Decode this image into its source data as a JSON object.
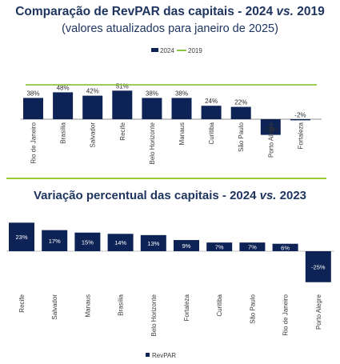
{
  "chart_data": [
    {
      "type": "bar",
      "title": "Comparação de RevPAR das capitais - 2024 vs. 2019",
      "subtitle": "(valores atualizados para janeiro de 2025)",
      "legend": [
        "2024",
        "2019"
      ],
      "legend_position": "top-center",
      "categories": [
        "Rio de Janeiro",
        "Brasília",
        "Salvador",
        "Recife",
        "Belo Horizonte",
        "Manaus",
        "Curitiba",
        "São Paulo",
        "Porto Alegre",
        "Fortaleza"
      ],
      "labels": [
        "38%",
        "48%",
        "42%",
        "51%",
        "38%",
        "38%",
        "24%",
        "22%",
        "-28%",
        "-2%"
      ],
      "series": [
        {
          "name": "2024",
          "values": [
            38,
            48,
            42,
            51,
            38,
            38,
            24,
            22,
            -28,
            -2
          ],
          "color": "#0e2355"
        },
        {
          "name": "2019",
          "values": [
            0,
            0,
            0,
            0,
            0,
            0,
            0,
            0,
            0,
            0
          ],
          "color": "#8dc63f"
        }
      ],
      "grid": false
    },
    {
      "type": "bar",
      "title": "Variação percentual das capitais - 2024 vs. 2023",
      "legend": [
        "RevPAR"
      ],
      "legend_position": "bottom-center",
      "categories": [
        "Recife",
        "Salvador",
        "Manaus",
        "Brasília",
        "Belo Horizonte",
        "Fortaleza",
        "Curitiba",
        "São Paulo",
        "Rio de Janeiro",
        "Porto Alegre"
      ],
      "labels": [
        "23%",
        "17%",
        "15%",
        "14%",
        "13%",
        "9%",
        "7%",
        "7%",
        "6%",
        "-25%"
      ],
      "values": [
        23,
        17,
        15,
        14,
        13,
        9,
        7,
        7,
        6,
        -25
      ],
      "color": "#0e2355",
      "grid": false
    }
  ]
}
